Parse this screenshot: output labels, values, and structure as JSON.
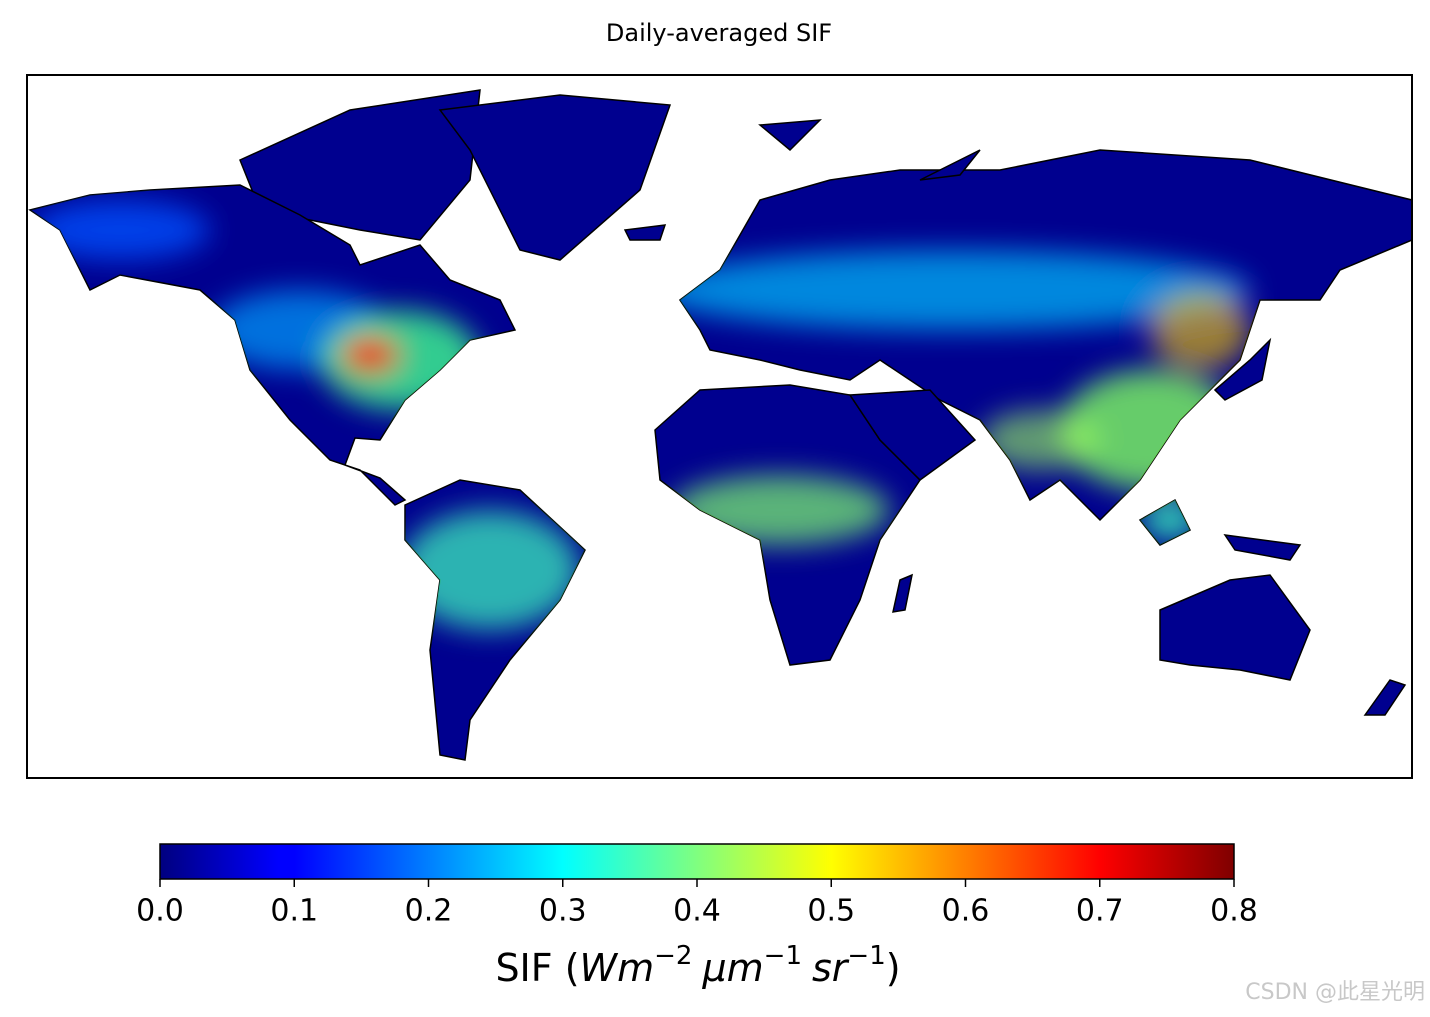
{
  "title": "Daily-averaged SIF",
  "colorbar": {
    "colormap": "jet",
    "lim": [
      0,
      0.8
    ],
    "ticks": [
      {
        "value": 0,
        "label": "0.0"
      },
      {
        "value": 0.1,
        "label": "0.1"
      },
      {
        "value": 0.2,
        "label": "0.2"
      },
      {
        "value": 0.3,
        "label": "0.3"
      },
      {
        "value": 0.4,
        "label": "0.4"
      },
      {
        "value": 0.5,
        "label": "0.5"
      },
      {
        "value": 0.6,
        "label": "0.6"
      },
      {
        "value": 0.7,
        "label": "0.7"
      },
      {
        "value": 0.8,
        "label": "0.8"
      }
    ],
    "label_parts": [
      "SIF (",
      "Wm",
      "−2",
      "μm",
      "−1",
      "sr",
      "−1",
      ")"
    ]
  },
  "watermark": "CSDN @此星光明"
}
